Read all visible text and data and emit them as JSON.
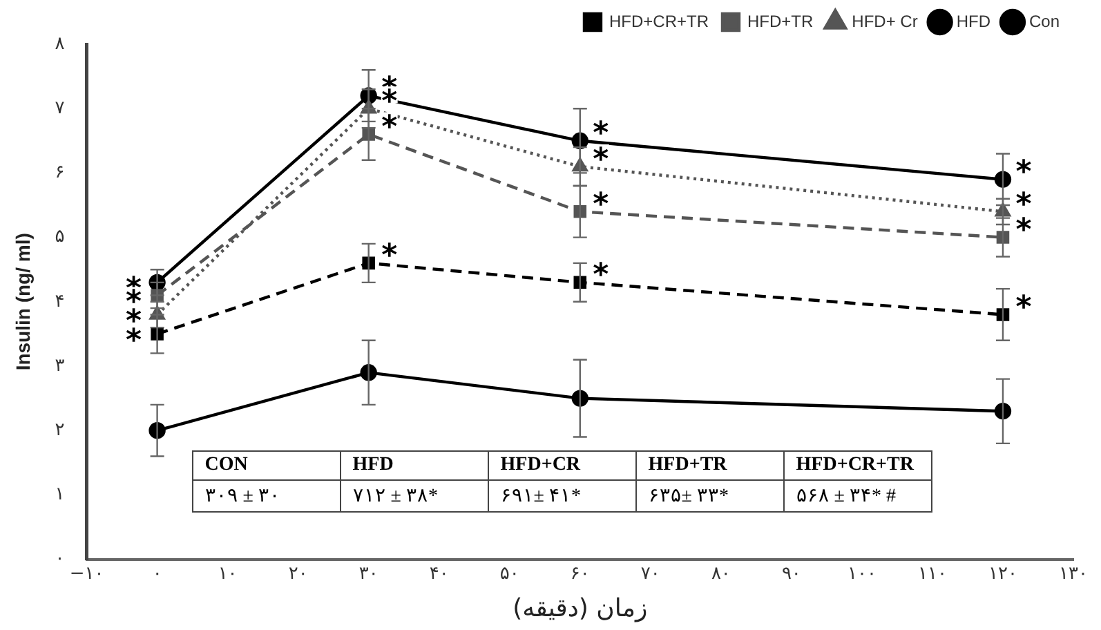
{
  "chart_data": {
    "type": "line",
    "xlabel": "زمان (دقیقه)",
    "ylabel": "Insulin (ng/ ml)",
    "x": [
      0,
      30,
      60,
      120
    ],
    "xlim": [
      -10,
      130
    ],
    "xticks": [
      {
        "value": -10,
        "label": "−۱۰"
      },
      {
        "value": 0,
        "label": "۰"
      },
      {
        "value": 10,
        "label": "۱۰"
      },
      {
        "value": 20,
        "label": "۲۰"
      },
      {
        "value": 30,
        "label": "۳۰"
      },
      {
        "value": 40,
        "label": "۴۰"
      },
      {
        "value": 50,
        "label": "۵۰"
      },
      {
        "value": 60,
        "label": "۶۰"
      },
      {
        "value": 70,
        "label": "۷۰"
      },
      {
        "value": 80,
        "label": "۸۰"
      },
      {
        "value": 90,
        "label": "۹۰"
      },
      {
        "value": 100,
        "label": "۱۰۰"
      },
      {
        "value": 110,
        "label": "۱۱۰"
      },
      {
        "value": 120,
        "label": "۱۲۰"
      },
      {
        "value": 130,
        "label": "۱۳۰"
      }
    ],
    "ylim": [
      0,
      8
    ],
    "yticks": [
      {
        "value": 0,
        "label": "۰"
      },
      {
        "value": 1,
        "label": "۱"
      },
      {
        "value": 2,
        "label": "۲"
      },
      {
        "value": 3,
        "label": "۳"
      },
      {
        "value": 4,
        "label": "۴"
      },
      {
        "value": 5,
        "label": "۵"
      },
      {
        "value": 6,
        "label": "۶"
      },
      {
        "value": 7,
        "label": "۷"
      },
      {
        "value": 8,
        "label": "۸"
      }
    ],
    "grid": false,
    "legend": "top",
    "series": [
      {
        "name": "Con",
        "color": "#000000",
        "marker": "circle",
        "line_style": "solid",
        "values": [
          2.0,
          2.9,
          2.5,
          2.3
        ],
        "errors": [
          0.4,
          0.5,
          0.6,
          0.5
        ]
      },
      {
        "name": "HFD",
        "color": "#000000",
        "marker": "circle",
        "line_style": "solid",
        "values": [
          4.3,
          7.2,
          6.5,
          5.9
        ],
        "errors": [
          0.2,
          0.4,
          0.5,
          0.4
        ]
      },
      {
        "name": "HFD+ Cr",
        "color": "#555555",
        "marker": "triangle",
        "line_style": "dotted",
        "values": [
          3.8,
          7.0,
          6.1,
          5.4
        ],
        "errors": [
          0.2,
          0.3,
          0.3,
          0.2
        ]
      },
      {
        "name": "HFD+TR",
        "color": "#555555",
        "marker": "square",
        "line_style": "dashed",
        "values": [
          4.1,
          6.6,
          5.4,
          5.0
        ],
        "errors": [
          0.2,
          0.4,
          0.4,
          0.3
        ]
      },
      {
        "name": "HFD+CR+TR",
        "color": "#000000",
        "marker": "square",
        "line_style": "dashed",
        "values": [
          3.5,
          4.6,
          4.3,
          3.8
        ],
        "errors": [
          0.3,
          0.3,
          0.3,
          0.4
        ]
      }
    ],
    "annotations": [
      "CON",
      "HFD",
      "HFD+CR",
      "HFD+TR",
      "HFD+CR+TR",
      "۳۰۹ ± ۳۰",
      "۷۱۲ ± ۳۸*",
      "۶۹۱± ۴۱*",
      "۶۳۵± ۳۳*",
      "۵۶۸ ± ۳۴* #",
      {
        "text": "*",
        "x": 0,
        "y": 4.3
      },
      {
        "text": "*",
        "x": 0,
        "y": 4.1
      },
      {
        "text": "*",
        "x": 0,
        "y": 3.8
      },
      {
        "text": "*",
        "x": 0,
        "y": 3.5
      },
      {
        "text": "*",
        "x": 30,
        "y": 7.2
      },
      {
        "text": "*",
        "x": 30,
        "y": 7.0
      },
      {
        "text": "*",
        "x": 30,
        "y": 6.6
      },
      {
        "text": "*",
        "x": 30,
        "y": 4.6
      },
      {
        "text": "*",
        "x": 60,
        "y": 6.5
      },
      {
        "text": "*",
        "x": 60,
        "y": 6.1
      },
      {
        "text": "*",
        "x": 60,
        "y": 5.4
      },
      {
        "text": "*",
        "x": 60,
        "y": 4.3
      },
      {
        "text": "*",
        "x": 120,
        "y": 5.9
      },
      {
        "text": "*",
        "x": 120,
        "y": 5.4
      },
      {
        "text": "*",
        "x": 120,
        "y": 5.0
      },
      {
        "text": "*",
        "x": 120,
        "y": 3.8
      }
    ]
  }
}
